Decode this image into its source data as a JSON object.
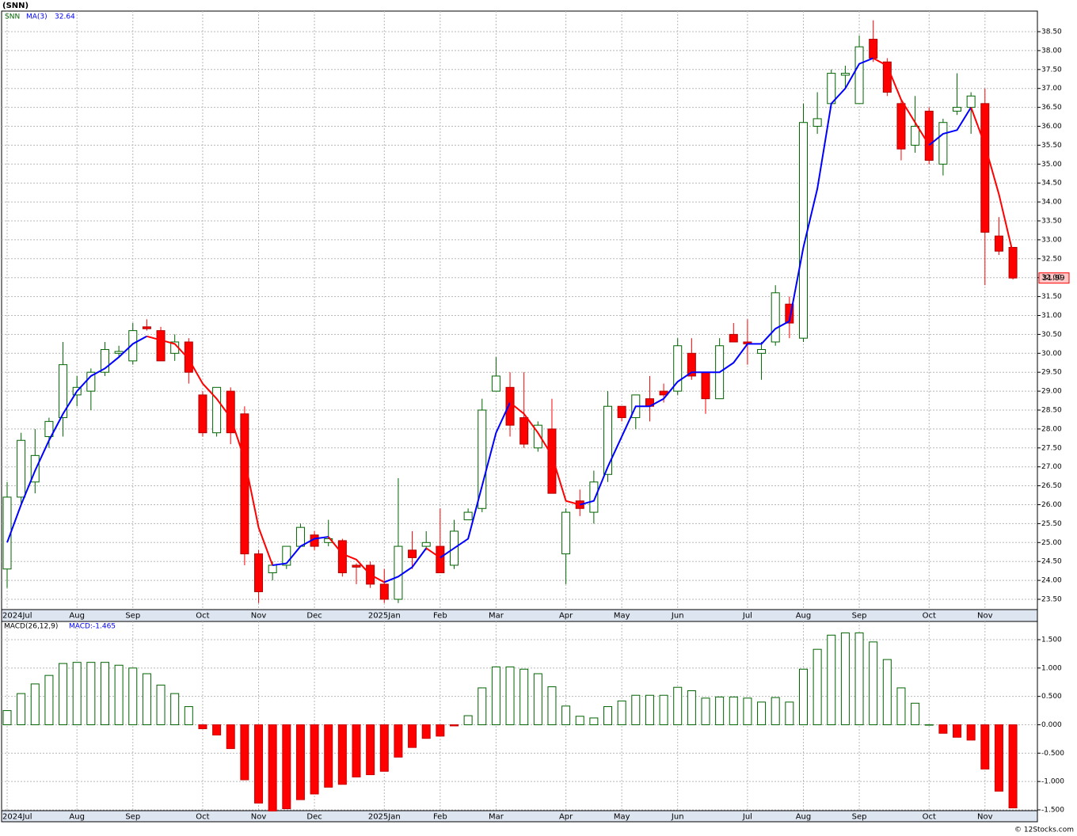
{
  "chart_data": [
    {
      "type": "candlestick",
      "title": "(SNN)",
      "name": "SNN",
      "categories": [
        "2024Jul",
        null,
        null,
        null,
        null,
        "Aug",
        null,
        null,
        null,
        "Sep",
        null,
        null,
        null,
        null,
        "Oct",
        null,
        null,
        null,
        "Nov",
        null,
        null,
        null,
        "Dec",
        null,
        null,
        null,
        null,
        "2025Jan",
        null,
        null,
        null,
        "Feb",
        null,
        null,
        null,
        "Mar",
        null,
        null,
        null,
        null,
        "Apr",
        null,
        null,
        null,
        "May",
        null,
        null,
        null,
        "Jun",
        null,
        null,
        null,
        null,
        "Jul",
        null,
        null,
        null,
        "Aug",
        null,
        null,
        null,
        "Sep",
        null,
        null,
        null,
        null,
        "Oct",
        null,
        null,
        null,
        "Nov",
        null,
        null
      ],
      "open": [
        24.3,
        26.2,
        26.6,
        27.8,
        28.3,
        28.9,
        29.0,
        29.5,
        30.0,
        29.8,
        30.7,
        30.6,
        30.0,
        30.3,
        28.9,
        27.9,
        29.0,
        28.4,
        24.7,
        24.2,
        24.4,
        24.9,
        25.2,
        25.0,
        25.05,
        24.4,
        24.4,
        23.9,
        23.5,
        24.8,
        24.9,
        24.9,
        24.4,
        25.6,
        25.9,
        29.0,
        29.1,
        28.3,
        27.5,
        28.0,
        24.7,
        26.1,
        25.8,
        26.8,
        28.6,
        28.3,
        28.8,
        29.0,
        29.0,
        30.0,
        29.5,
        28.8,
        30.5,
        30.3,
        30.0,
        30.3,
        31.3,
        30.4,
        36.0,
        36.6,
        37.35,
        36.6,
        38.3,
        37.7,
        36.6,
        35.5,
        36.4,
        35.0,
        36.4,
        36.5,
        36.6,
        33.1,
        32.8
      ],
      "high": [
        26.6,
        27.9,
        28.0,
        28.3,
        30.3,
        29.4,
        29.6,
        30.3,
        30.2,
        30.8,
        30.9,
        30.7,
        30.5,
        30.4,
        29.0,
        29.1,
        29.1,
        28.6,
        24.8,
        24.5,
        24.9,
        25.5,
        25.3,
        25.6,
        25.1,
        24.45,
        24.5,
        24.3,
        26.7,
        25.3,
        25.3,
        25.9,
        25.6,
        25.9,
        28.8,
        29.9,
        29.5,
        29.5,
        28.2,
        28.8,
        25.9,
        26.4,
        26.9,
        29.0,
        28.6,
        28.9,
        29.4,
        29.2,
        30.4,
        30.4,
        29.5,
        30.4,
        30.8,
        30.9,
        30.3,
        31.8,
        31.5,
        36.6,
        36.9,
        37.5,
        37.6,
        38.4,
        38.8,
        37.8,
        36.7,
        36.8,
        36.5,
        36.2,
        37.4,
        36.9,
        37.0,
        33.6,
        32.8
      ],
      "low": [
        23.8,
        26.0,
        26.3,
        27.5,
        27.8,
        28.6,
        28.5,
        29.4,
        29.9,
        29.7,
        30.6,
        29.8,
        29.8,
        29.2,
        27.8,
        27.8,
        27.6,
        24.4,
        23.4,
        24.0,
        24.3,
        24.9,
        24.8,
        24.9,
        24.1,
        23.9,
        23.8,
        23.4,
        23.4,
        24.3,
        24.8,
        24.2,
        24.3,
        25.6,
        25.8,
        29.0,
        27.8,
        27.5,
        27.4,
        26.3,
        23.9,
        25.7,
        25.5,
        26.6,
        28.2,
        28.0,
        28.2,
        28.7,
        28.9,
        29.3,
        28.4,
        28.8,
        30.3,
        29.7,
        29.3,
        30.2,
        30.4,
        30.3,
        35.8,
        36.6,
        37.0,
        36.6,
        37.7,
        36.8,
        35.1,
        35.3,
        35.0,
        34.7,
        36.3,
        35.8,
        31.8,
        32.6,
        31.95
      ],
      "close": [
        26.2,
        27.7,
        27.3,
        28.2,
        29.7,
        29.1,
        29.5,
        30.1,
        30.05,
        30.6,
        30.65,
        29.8,
        30.3,
        29.5,
        27.9,
        29.1,
        27.9,
        24.7,
        23.7,
        24.4,
        24.9,
        25.4,
        24.9,
        25.1,
        24.2,
        24.35,
        23.9,
        23.5,
        24.9,
        24.6,
        25.0,
        24.2,
        25.3,
        25.8,
        28.5,
        29.4,
        28.1,
        27.6,
        28.1,
        26.3,
        25.8,
        25.9,
        26.6,
        28.6,
        28.3,
        28.9,
        28.6,
        28.9,
        30.2,
        29.4,
        28.8,
        30.2,
        30.3,
        30.25,
        30.1,
        31.6,
        30.8,
        36.1,
        36.2,
        37.4,
        37.4,
        38.1,
        37.8,
        36.9,
        35.4,
        36.0,
        35.1,
        36.1,
        36.5,
        36.8,
        33.2,
        32.7,
        31.99
      ],
      "up_color": "#006400",
      "down_color": "#ff0000",
      "ma": {
        "name": "MA(3)",
        "up_color": "#0000ff",
        "down_color": "#ff0000",
        "values": [
          25.0,
          26.0,
          26.9,
          27.7,
          28.4,
          29.0,
          29.4,
          29.6,
          29.9,
          30.25,
          30.45,
          30.35,
          30.25,
          29.85,
          29.2,
          28.8,
          28.3,
          27.2,
          25.4,
          24.4,
          24.45,
          24.9,
          25.1,
          25.15,
          24.7,
          24.55,
          24.15,
          23.95,
          24.1,
          24.35,
          24.85,
          24.6,
          24.85,
          25.1,
          26.5,
          27.9,
          28.7,
          28.4,
          27.9,
          27.3,
          26.1,
          26.0,
          26.1,
          27.0,
          27.8,
          28.6,
          28.6,
          28.8,
          29.25,
          29.5,
          29.5,
          29.5,
          29.75,
          30.25,
          30.25,
          30.65,
          30.85,
          32.8,
          34.35,
          36.6,
          37.0,
          37.65,
          37.8,
          37.6,
          36.7,
          36.1,
          35.5,
          35.8,
          35.9,
          36.5,
          35.5,
          34.2,
          32.64
        ]
      },
      "ylim": [
        23.228,
        39.044
      ],
      "yticks": [
        {
          "value": 23.5,
          "label": "23.50"
        },
        {
          "value": 24,
          "label": "24.00"
        },
        {
          "value": 24.5,
          "label": "24.50"
        },
        {
          "value": 25,
          "label": "25.00"
        },
        {
          "value": 25.5,
          "label": "25.50"
        },
        {
          "value": 26,
          "label": "26.00"
        },
        {
          "value": 26.5,
          "label": "26.50"
        },
        {
          "value": 27,
          "label": "27.00"
        },
        {
          "value": 27.5,
          "label": "27.50"
        },
        {
          "value": 28,
          "label": "28.00"
        },
        {
          "value": 28.5,
          "label": "28.50"
        },
        {
          "value": 29,
          "label": "29.00"
        },
        {
          "value": 29.5,
          "label": "29.50"
        },
        {
          "value": 30,
          "label": "30.00"
        },
        {
          "value": 30.5,
          "label": "30.50"
        },
        {
          "value": 31,
          "label": "31.00"
        },
        {
          "value": 31.5,
          "label": "31.50"
        },
        {
          "value": 32,
          "label": "32.00"
        },
        {
          "value": 32.5,
          "label": "32.50"
        },
        {
          "value": 33,
          "label": "33.00"
        },
        {
          "value": 33.5,
          "label": "33.50"
        },
        {
          "value": 34,
          "label": "34.00"
        },
        {
          "value": 34.5,
          "label": "34.50"
        },
        {
          "value": 35,
          "label": "35.00"
        },
        {
          "value": 35.5,
          "label": "35.50"
        },
        {
          "value": 36,
          "label": "36.00"
        },
        {
          "value": 36.5,
          "label": "36.50"
        },
        {
          "value": 37,
          "label": "37.00"
        },
        {
          "value": 37.5,
          "label": "37.50"
        },
        {
          "value": 38,
          "label": "38.00"
        },
        {
          "value": 38.5,
          "label": "38.50"
        }
      ],
      "grid": true
    },
    {
      "type": "bar",
      "name": "MACD(26,12,9)",
      "current_label": "MACD:-1.465",
      "up_color": "#006400",
      "down_color": "#ff0000",
      "values": [
        0.25,
        0.55,
        0.72,
        0.87,
        1.08,
        1.1,
        1.1,
        1.1,
        1.05,
        1.0,
        0.9,
        0.7,
        0.55,
        0.32,
        -0.07,
        -0.18,
        -0.42,
        -0.97,
        -1.38,
        -1.52,
        -1.48,
        -1.32,
        -1.22,
        -1.1,
        -1.05,
        -0.92,
        -0.88,
        -0.82,
        -0.57,
        -0.4,
        -0.24,
        -0.2,
        -0.02,
        0.16,
        0.65,
        1.02,
        1.02,
        0.98,
        0.9,
        0.67,
        0.33,
        0.15,
        0.12,
        0.32,
        0.42,
        0.52,
        0.52,
        0.52,
        0.66,
        0.6,
        0.47,
        0.49,
        0.49,
        0.47,
        0.4,
        0.48,
        0.4,
        0.98,
        1.33,
        1.58,
        1.62,
        1.62,
        1.46,
        1.15,
        0.65,
        0.38,
        0.0,
        -0.15,
        -0.22,
        -0.27,
        -0.78,
        -1.17,
        -1.465
      ],
      "ylim": [
        -1.514,
        1.821
      ],
      "yticks": [
        {
          "value": -1.5,
          "label": "-1.500"
        },
        {
          "value": -1,
          "label": "-1.000"
        },
        {
          "value": -0.5,
          "label": "-0.500"
        },
        {
          "value": 0,
          "label": "0.000"
        },
        {
          "value": 0.5,
          "label": "0.500"
        },
        {
          "value": 1,
          "label": "1.000"
        },
        {
          "value": 1.5,
          "label": "1.500"
        }
      ],
      "grid": true
    }
  ],
  "footer": "© 12Stocks.com"
}
